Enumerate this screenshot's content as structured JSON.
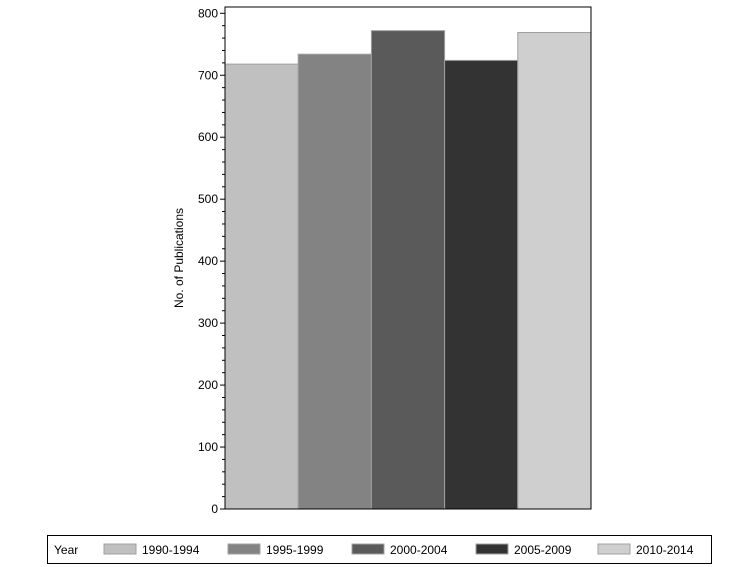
{
  "chart_data": {
    "type": "bar",
    "title": "",
    "xlabel": "",
    "ylabel": "No. of Publications",
    "ylim": [
      0,
      800
    ],
    "yticks": [
      0,
      100,
      200,
      300,
      400,
      500,
      600,
      700,
      800
    ],
    "grid": false,
    "legend_position": "bottom",
    "legend_title": "Year",
    "categories": [
      "1990-1994",
      "1995-1999",
      "2000-2004",
      "2005-2009",
      "2010-2014"
    ],
    "values": [
      718,
      734,
      772,
      724,
      769
    ],
    "colors": [
      "#c0c0c0",
      "#838383",
      "#5a5a5a",
      "#333333",
      "#cfcfcf"
    ]
  }
}
